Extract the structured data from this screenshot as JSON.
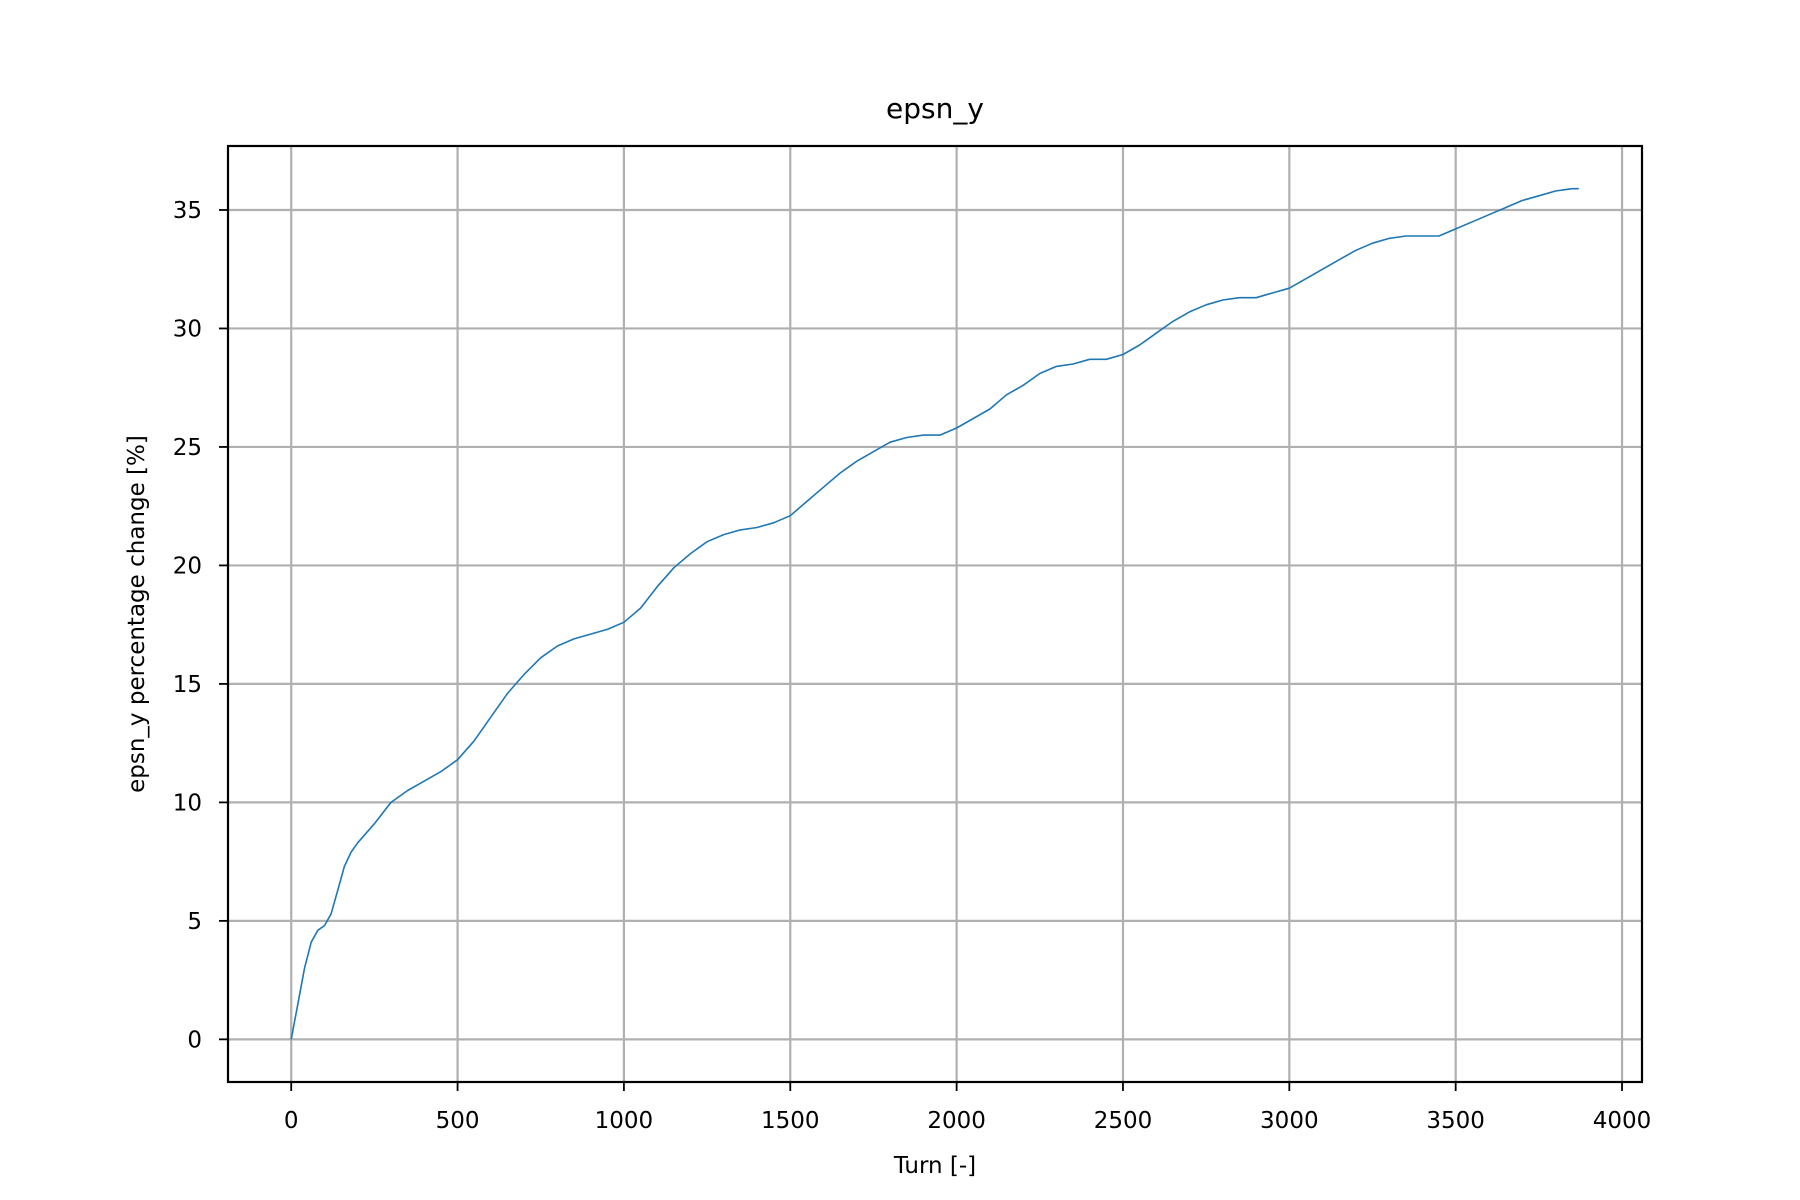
{
  "chart_data": {
    "type": "line",
    "title": "epsn_y",
    "xlabel": "Turn [-]",
    "ylabel": "epsn_y percentage change [%]",
    "xlim": [
      -190,
      4060
    ],
    "ylim": [
      -1.8,
      37.7
    ],
    "xticks": [
      0,
      500,
      1000,
      1500,
      2000,
      2500,
      3000,
      3500,
      4000
    ],
    "yticks": [
      0,
      5,
      10,
      15,
      20,
      25,
      30,
      35
    ],
    "xtick_labels": [
      "0",
      "500",
      "1000",
      "1500",
      "2000",
      "2500",
      "3000",
      "3500",
      "4000"
    ],
    "ytick_labels": [
      "0",
      "5",
      "10",
      "15",
      "20",
      "25",
      "30",
      "35"
    ],
    "grid": true,
    "series_color": "#1f77b4",
    "grid_color": "#b0b0b0",
    "series": [
      {
        "x": [
          0,
          20,
          40,
          60,
          80,
          100,
          120,
          140,
          160,
          180,
          200,
          250,
          300,
          350,
          400,
          450,
          500,
          550,
          600,
          650,
          700,
          750,
          800,
          850,
          900,
          950,
          1000,
          1050,
          1100,
          1150,
          1200,
          1250,
          1300,
          1350,
          1400,
          1450,
          1500,
          1550,
          1600,
          1650,
          1700,
          1750,
          1800,
          1850,
          1900,
          1950,
          2000,
          2050,
          2100,
          2150,
          2200,
          2250,
          2300,
          2350,
          2400,
          2450,
          2500,
          2550,
          2600,
          2650,
          2700,
          2750,
          2800,
          2850,
          2900,
          2950,
          3000,
          3050,
          3100,
          3150,
          3200,
          3250,
          3300,
          3350,
          3400,
          3450,
          3500,
          3550,
          3600,
          3650,
          3700,
          3750,
          3800,
          3850,
          3870
        ],
        "y": [
          0,
          1.5,
          3.0,
          4.1,
          4.6,
          4.8,
          5.3,
          6.3,
          7.3,
          7.9,
          8.3,
          9.1,
          10.0,
          10.5,
          10.9,
          11.3,
          11.8,
          12.6,
          13.6,
          14.6,
          15.4,
          16.1,
          16.6,
          16.9,
          17.1,
          17.3,
          17.6,
          18.2,
          19.1,
          19.9,
          20.5,
          21.0,
          21.3,
          21.5,
          21.6,
          21.8,
          22.1,
          22.7,
          23.3,
          23.9,
          24.4,
          24.8,
          25.2,
          25.4,
          25.5,
          25.5,
          25.8,
          26.2,
          26.6,
          27.2,
          27.6,
          28.1,
          28.4,
          28.5,
          28.7,
          28.7,
          28.9,
          29.3,
          29.8,
          30.3,
          30.7,
          31.0,
          31.2,
          31.3,
          31.3,
          31.5,
          31.7,
          32.1,
          32.5,
          32.9,
          33.3,
          33.6,
          33.8,
          33.9,
          33.9,
          33.9,
          34.2,
          34.5,
          34.8,
          35.1,
          35.4,
          35.6,
          35.8,
          35.9,
          35.9
        ]
      }
    ]
  }
}
